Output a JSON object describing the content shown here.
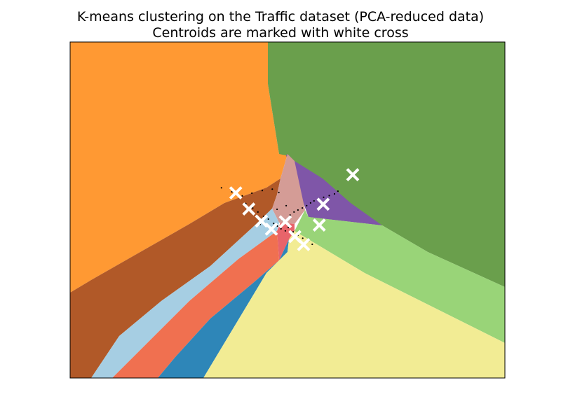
{
  "chart_data": {
    "type": "decision-region-plot",
    "title": "K-means clustering on the Traffic dataset (PCA-reduced data)",
    "subtitle": "Centroids are marked with white cross",
    "xlabel": "",
    "ylabel": "",
    "xlim": [
      0,
      100
    ],
    "ylim": [
      0,
      100
    ],
    "axis_ticks": "hidden",
    "grid": false,
    "legend": "none",
    "n_clusters": 10,
    "cluster_colors": [
      "#ff9933",
      "#b15928",
      "#a6cee3",
      "#f07050",
      "#2e86b8",
      "#f2ec94",
      "#99d478",
      "#e8646a",
      "#d49c96",
      "#7f56a8",
      "#6a9f4c"
    ],
    "centroid_marker": {
      "shape": "x",
      "color": "#ffffff"
    },
    "centroids": [
      {
        "x": 65.0,
        "y": 60.5
      },
      {
        "x": 38.1,
        "y": 55.1
      },
      {
        "x": 41.1,
        "y": 50.3
      },
      {
        "x": 58.2,
        "y": 51.7
      },
      {
        "x": 44.0,
        "y": 46.7
      },
      {
        "x": 57.3,
        "y": 45.5
      },
      {
        "x": 46.3,
        "y": 44.3
      },
      {
        "x": 49.5,
        "y": 46.5
      },
      {
        "x": 51.7,
        "y": 42.1
      },
      {
        "x": 53.7,
        "y": 39.7
      }
    ],
    "data_points": [
      {
        "x": 34.8,
        "y": 56.6
      },
      {
        "x": 37.2,
        "y": 55.4
      },
      {
        "x": 39.6,
        "y": 54.2
      },
      {
        "x": 41.8,
        "y": 55.0
      },
      {
        "x": 44.2,
        "y": 55.8
      },
      {
        "x": 46.5,
        "y": 56.2
      },
      {
        "x": 48.0,
        "y": 55.2
      },
      {
        "x": 40.4,
        "y": 51.9
      },
      {
        "x": 42.0,
        "y": 50.6
      },
      {
        "x": 43.2,
        "y": 49.4
      },
      {
        "x": 44.5,
        "y": 48.1
      },
      {
        "x": 45.6,
        "y": 47.3
      },
      {
        "x": 46.8,
        "y": 46.0
      },
      {
        "x": 47.7,
        "y": 45.2
      },
      {
        "x": 48.5,
        "y": 44.4
      },
      {
        "x": 49.5,
        "y": 43.8
      },
      {
        "x": 50.6,
        "y": 48.5
      },
      {
        "x": 51.5,
        "y": 49.4
      },
      {
        "x": 52.4,
        "y": 50.0
      },
      {
        "x": 53.4,
        "y": 50.6
      },
      {
        "x": 54.4,
        "y": 51.3
      },
      {
        "x": 55.3,
        "y": 52.1
      },
      {
        "x": 56.1,
        "y": 52.7
      },
      {
        "x": 57.1,
        "y": 53.3
      },
      {
        "x": 58.3,
        "y": 53.8
      },
      {
        "x": 59.6,
        "y": 54.3
      },
      {
        "x": 60.8,
        "y": 54.8
      },
      {
        "x": 61.6,
        "y": 55.6
      },
      {
        "x": 50.2,
        "y": 44.8
      },
      {
        "x": 51.3,
        "y": 43.5
      },
      {
        "x": 52.4,
        "y": 42.5
      },
      {
        "x": 53.5,
        "y": 41.6
      },
      {
        "x": 54.9,
        "y": 40.9
      },
      {
        "x": 55.7,
        "y": 39.8
      },
      {
        "x": 47.6,
        "y": 50.2
      },
      {
        "x": 49.7,
        "y": 51.3
      },
      {
        "x": 43.7,
        "y": 45.7
      },
      {
        "x": 48.9,
        "y": 46.9
      }
    ]
  }
}
